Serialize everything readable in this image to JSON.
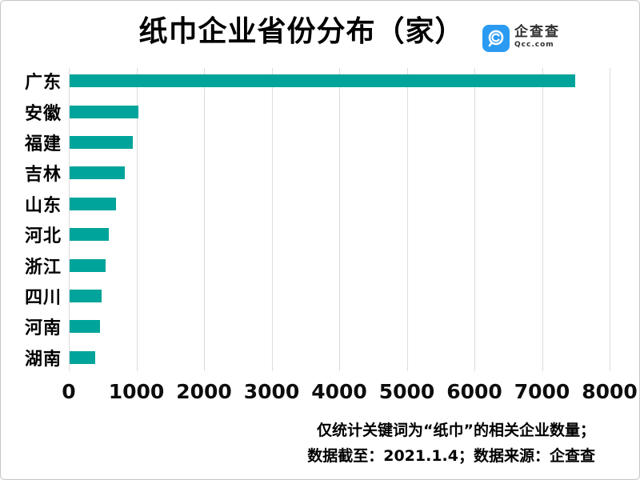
{
  "header": {
    "title": "纸巾企业省份分布（家）",
    "logo": {
      "brand": "企查查",
      "domain": "Qcc.com",
      "brand_color": "#2b9bf2"
    }
  },
  "chart_data": {
    "type": "bar",
    "orientation": "horizontal",
    "title": "纸巾企业省份分布（家）",
    "categories": [
      "广东",
      "安徽",
      "福建",
      "吉林",
      "山东",
      "河北",
      "浙江",
      "四川",
      "河南",
      "湖南"
    ],
    "values": [
      7475,
      1020,
      930,
      820,
      690,
      585,
      530,
      470,
      450,
      380
    ],
    "xlabel": "",
    "ylabel": "",
    "xlim": [
      0,
      8000
    ],
    "x_ticks": [
      0,
      1000,
      2000,
      3000,
      4000,
      5000,
      6000,
      7000,
      8000
    ],
    "bar_color": "#00a49a",
    "gridline_color": "#dbdbdb",
    "grid": "vertical-only",
    "legend": "none"
  },
  "footer": {
    "line1": "仅统计关键词为“纸巾”的相关企业数量；",
    "line2": "数据截至：2021.1.4；数据来源：企查查"
  }
}
